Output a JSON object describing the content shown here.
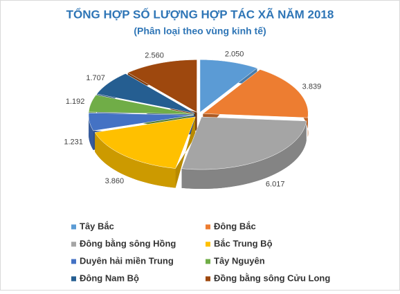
{
  "chart_data": {
    "type": "pie3d",
    "title": "TỔNG HỢP SỐ LƯỢNG HỢP TÁC XÃ NĂM 2018",
    "subtitle": "(Phân loại theo vùng kinh tế)",
    "categories": [
      "Tây Bắc",
      "Đông Bắc",
      "Đông bằng sông Hồng",
      "Bắc Trung Bộ",
      "Duyên hải miền Trung",
      "Tây Nguyên",
      "Đông Nam Bộ",
      "Đồng bằng sông Cửu Long"
    ],
    "values": [
      2050,
      3839,
      6017,
      3860,
      1231,
      1192,
      1707,
      2560
    ],
    "value_labels": [
      "2.050",
      "3.839",
      "6.017",
      "3.860",
      "1.231",
      "1.192",
      "1.707",
      "2.560"
    ],
    "colors": [
      "#5b9bd5",
      "#ed7d31",
      "#a5a5a5",
      "#ffc000",
      "#4472c4",
      "#70ad47",
      "#255e91",
      "#9e480e"
    ]
  }
}
